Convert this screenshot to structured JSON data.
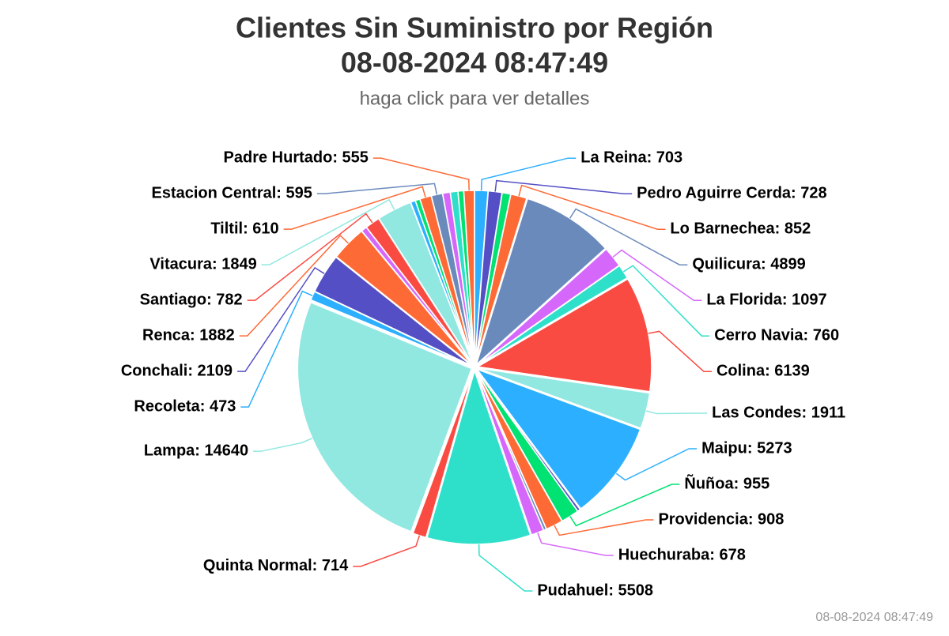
{
  "chart_data": {
    "type": "pie",
    "title": [
      "Clientes Sin Suministro por Región",
      "08-08-2024 08:47:49"
    ],
    "subtitle": "haga click para ver detalles",
    "credit": "08-08-2024 08:47:49",
    "values": [
      703,
      728,
      450,
      852,
      4899,
      1097,
      760,
      6139,
      1911,
      5273,
      150,
      955,
      908,
      150,
      678,
      5508,
      714,
      14640,
      473,
      2109,
      1882,
      300,
      782,
      1849,
      250,
      250,
      610,
      595,
      400,
      400,
      300,
      555
    ],
    "value_labels": [
      "La Reina: 703",
      "Pedro Aguirre Cerda: 728",
      null,
      "Lo Barnechea: 852",
      "Quilicura: 4899",
      "La Florida: 1097",
      "Cerro Navia: 760",
      "Colina: 6139",
      "Las Condes: 1911",
      "Maipu: 5273",
      null,
      "Ñuñoa: 955",
      "Providencia: 908",
      null,
      "Huechuraba: 678",
      "Pudahuel: 5508",
      "Quinta Normal: 714",
      "Lampa: 14640",
      "Recoleta: 473",
      "Conchali: 2109",
      "Renca: 1882",
      null,
      "Santiago: 782",
      "Vitacura: 1849",
      null,
      null,
      "Tiltil: 610",
      "Estacion Central: 595",
      null,
      null,
      null,
      "Padre Hurtado: 555"
    ],
    "colors": [
      "#2caffe",
      "#544fc5",
      "#00e272",
      "#fe6a35",
      "#6b8abc",
      "#d568fb",
      "#2ee0ca",
      "#fa4b42",
      "#91e8e1",
      "#2caffe",
      "#544fc5",
      "#00e272",
      "#fe6a35",
      "#6b8abc",
      "#d568fb",
      "#2ee0ca",
      "#fa4b42",
      "#91e8e1",
      "#2caffe",
      "#544fc5",
      "#fe6a35",
      "#d568fb",
      "#fa4b42",
      "#91e8e1",
      "#2caffe",
      "#00e272",
      "#fe6a35",
      "#6b8abc",
      "#d568fb",
      "#2ee0ca",
      "#00e272",
      "#fe6a35"
    ]
  }
}
